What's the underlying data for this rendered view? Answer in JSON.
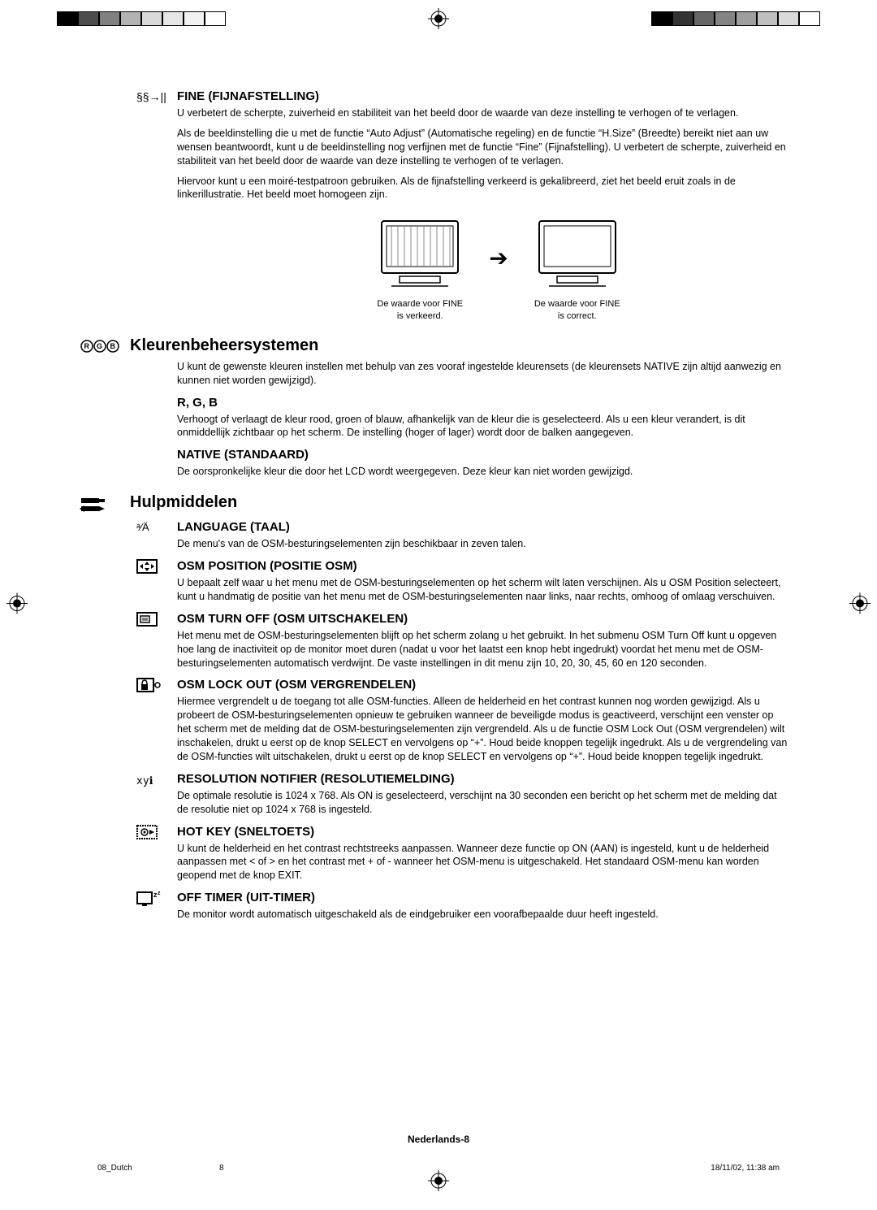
{
  "print_marks": {
    "swatch_colors_left": [
      "#000000",
      "#4d4d4d",
      "#808080",
      "#b3b3b3",
      "#d9d9d9",
      "#e6e6e6",
      "#f2f2f2",
      "#ffffff"
    ],
    "swatch_colors_right": [
      "#000000",
      "#333333",
      "#666666",
      "#848484",
      "#9e9e9e",
      "#bfbfbf",
      "#d9d9d9",
      "#ffffff"
    ]
  },
  "sections": {
    "fine": {
      "heading": "FINE (FIJNAFSTELLING)",
      "p1": "U verbetert de scherpte, zuiverheid en stabiliteit van het beeld door de waarde van deze instelling te verhogen of te verlagen.",
      "p2": "Als de beeldinstelling die u met de functie “Auto Adjust” (Automatische regeling) en de functie “H.Size” (Breedte) bereikt niet aan uw wensen beantwoordt, kunt u de beeldinstelling nog verfijnen met de functie “Fine” (Fijnafstelling). U verbetert de scherpte, zuiverheid en stabiliteit van het beeld door de waarde van deze instelling te verhogen of te verlagen.",
      "p3": "Hiervoor kunt u een moiré-testpatroon gebruiken. Als de fijnafstelling verkeerd is gekalibreerd, ziet het beeld eruit zoals in de linkerillustratie. Het beeld moet homogeen zijn.",
      "caption_left": "De waarde voor FINE is verkeerd.",
      "caption_right": "De waarde voor FINE is correct."
    },
    "color": {
      "heading": "Kleurenbeheersystemen",
      "p1": "U kunt de gewenste kleuren instellen met behulp van zes vooraf ingestelde kleurensets (de kleurensets NATIVE zijn altijd aanwezig en kunnen niet worden gewijzigd).",
      "rgb_heading": "R, G, B",
      "rgb_text": "Verhoogt of verlaagt de kleur rood, groen of blauw, afhankelijk van de kleur die is geselecteerd. Als u een kleur verandert, is dit onmiddellijk zichtbaar op het scherm. De instelling (hoger of lager) wordt door de balken aangegeven.",
      "native_heading": "NATIVE (STANDAARD)",
      "native_text": "De oorspronkelijke kleur die door het LCD wordt weergegeven. Deze kleur kan niet worden gewijzigd."
    },
    "tools": {
      "heading": "Hulpmiddelen",
      "language_heading": "LANGUAGE (TAAL)",
      "language_text": "De menu's van de OSM-besturingselementen zijn beschikbaar in zeven talen.",
      "osm_pos_heading": "OSM POSITION (POSITIE OSM)",
      "osm_pos_text": "U bepaalt zelf waar u het menu met de OSM-besturingselementen op het scherm wilt laten verschijnen. Als u OSM Position selecteert, kunt u handmatig de positie van het menu met de OSM-besturingselementen naar links, naar rechts, omhoog of omlaag verschuiven.",
      "osm_off_heading": "OSM TURN OFF (OSM UITSCHAKELEN)",
      "osm_off_text": "Het menu met de OSM-besturingselementen blijft op het scherm zolang u het gebruikt. In het submenu OSM Turn Off kunt u opgeven hoe lang de inactiviteit op de monitor moet duren (nadat u voor het laatst een knop hebt ingedrukt) voordat het menu met de OSM-besturingselementen automatisch verdwijnt. De vaste instellingen in dit menu zijn 10, 20, 30, 45, 60 en 120 seconden.",
      "osm_lock_heading": "OSM LOCK OUT (OSM VERGRENDELEN)",
      "osm_lock_text": "Hiermee vergrendelt u de toegang tot alle OSM-functies. Alleen de helderheid en het contrast kunnen nog worden gewijzigd. Als u probeert de OSM-besturingselementen opnieuw te gebruiken wanneer de beveiligde modus is geactiveerd, verschijnt een venster op het scherm met de melding dat de OSM-besturingselementen zijn vergrendeld. Als u de functie OSM Lock Out (OSM vergrendelen) wilt inschakelen, drukt u eerst op de knop SELECT en vervolgens op “+”. Houd beide knoppen tegelijk ingedrukt. Als u de vergrendeling van de OSM-functies wilt uitschakelen, drukt u eerst op de knop SELECT en vervolgens op “+”. Houd beide knoppen tegelijk ingedrukt.",
      "res_heading": "RESOLUTION NOTIFIER (RESOLUTIEMELDING)",
      "res_text": "De optimale resolutie is 1024 x 768. Als ON is geselecteerd, verschijnt na 30 seconden een bericht op het scherm met de melding dat de resolutie niet op 1024 x 768 is ingesteld.",
      "hotkey_heading": "HOT KEY (SNELTOETS)",
      "hotkey_text": "U kunt de helderheid en het contrast rechtstreeks aanpassen. Wanneer deze functie op ON (AAN) is ingesteld, kunt u de helderheid aanpassen met < of > en het contrast met + of - wanneer het OSM-menu is uitgeschakeld. Het standaard OSM-menu kan worden geopend met de knop EXIT.",
      "timer_heading": "OFF TIMER (UIT-TIMER)",
      "timer_text": "De monitor wordt automatisch uitgeschakeld als de eindgebruiker een voorafbepaalde duur heeft ingesteld."
    }
  },
  "footer": {
    "page_label": "Nederlands-8",
    "meta_left": "08_Dutch",
    "meta_mid": "8",
    "meta_right": "18/11/02, 11:38 am"
  }
}
